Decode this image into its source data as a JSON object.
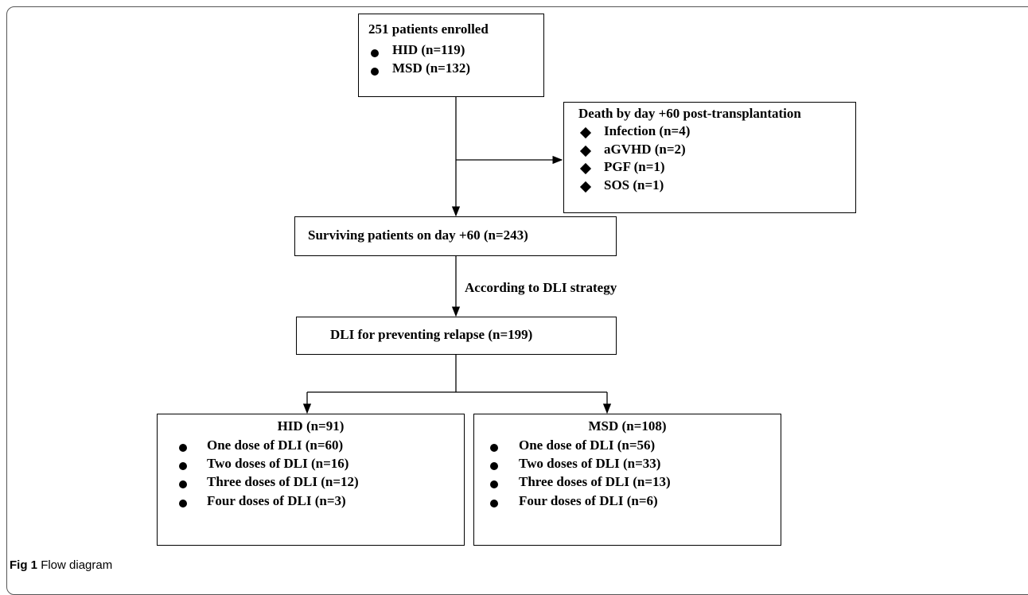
{
  "nodes": [
    {
      "title": "251 patients enrolled",
      "items": [
        "HID (n=119)",
        "MSD (n=132)"
      ]
    },
    {
      "title": "Death by day +60 post-transplantation",
      "items": [
        "Infection (n=4)",
        "aGVHD (n=2)",
        "PGF (n=1)",
        "SOS (n=1)"
      ]
    },
    {
      "title": "Surviving patients on day +60 (n=243)"
    },
    {
      "title": "DLI for preventing relapse (n=199)"
    },
    {
      "title": "HID (n=91)",
      "items": [
        "One dose of DLI (n=60)",
        "Two doses of DLI (n=16)",
        "Three doses of DLI (n=12)",
        "Four doses of DLI (n=3)"
      ]
    },
    {
      "title": "MSD (n=108)",
      "items": [
        "One dose of DLI (n=56)",
        "Two doses of DLI (n=33)",
        "Three doses of DLI (n=13)",
        "Four doses of DLI (n=6)"
      ]
    }
  ],
  "edge_label": "According to DLI strategy",
  "caption": {
    "label": "Fig 1",
    "text": "Flow diagram"
  }
}
